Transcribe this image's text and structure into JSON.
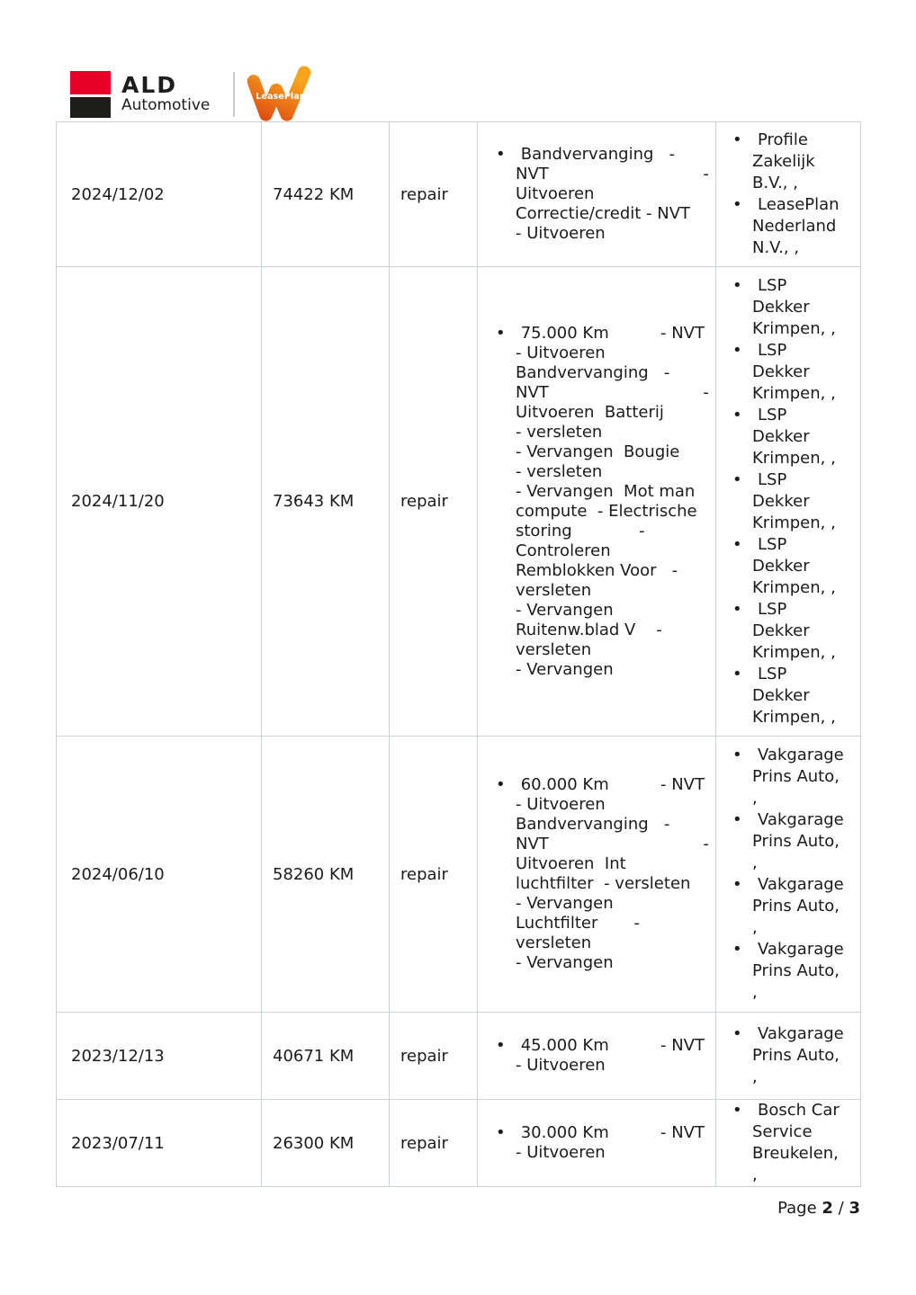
{
  "theme": {
    "ald_red": "#e60028",
    "logo_black": "#1d1d1b",
    "lp_orange_light": "#f7a41d",
    "lp_orange_dark": "#e04d12",
    "table_border": "#c9d2d9",
    "text_color": "#1b1b1b"
  },
  "header": {
    "ald_brand": "ALD",
    "ald_sub": "Automotive",
    "leaseplan_label": "LeasePlan"
  },
  "table": {
    "rows": [
      {
        "date": "2024/12/02",
        "mileage": "74422 KM",
        "type": "repair",
        "service_lines": [
          " Bandvervanging   -",
          "NVT                              -",
          "Uitvoeren",
          "Correctie/credit - NVT",
          "- Uitvoeren"
        ],
        "suppliers": [
          "Profile Zakelijk B.V., ,",
          "LeasePlan Nederland N.V., ,"
        ]
      },
      {
        "date": "2024/11/20",
        "mileage": "73643 KM",
        "type": "repair",
        "service_lines": [
          " 75.000 Km          - NVT",
          "- Uitvoeren",
          "Bandvervanging   -",
          "NVT                              -",
          "Uitvoeren  Batterij",
          "- versleten",
          "- Vervangen  Bougie",
          "- versleten",
          "- Vervangen  Mot man",
          "compute  - Electrische",
          "storing             -",
          "Controleren",
          "Remblokken Voor   -",
          "versleten",
          "- Vervangen",
          "Ruitenw.blad V    -",
          "versleten",
          "- Vervangen"
        ],
        "suppliers": [
          "LSP Dekker Krimpen, ,",
          "LSP Dekker Krimpen, ,",
          "LSP Dekker Krimpen, ,",
          "LSP Dekker Krimpen, ,",
          "LSP Dekker Krimpen, ,",
          "LSP Dekker Krimpen, ,",
          "LSP Dekker Krimpen, ,"
        ]
      },
      {
        "date": "2024/06/10",
        "mileage": "58260 KM",
        "type": "repair",
        "service_lines": [
          " 60.000 Km          - NVT",
          "- Uitvoeren",
          "Bandvervanging   -",
          "NVT                              -",
          "Uitvoeren  Int",
          "luchtfilter  - versleten",
          "- Vervangen",
          "Luchtfilter       -",
          "versleten",
          "- Vervangen"
        ],
        "suppliers": [
          "Vakgarage Prins Auto, ,",
          "Vakgarage Prins Auto, ,",
          "Vakgarage Prins Auto, ,",
          "Vakgarage Prins Auto, ,"
        ]
      },
      {
        "date": "2023/12/13",
        "mileage": "40671 KM",
        "type": "repair",
        "service_lines": [
          " 45.000 Km          - NVT",
          "- Uitvoeren"
        ],
        "suppliers": [
          "Vakgarage Prins Auto, ,"
        ]
      },
      {
        "date": "2023/07/11",
        "mileage": "26300 KM",
        "type": "repair",
        "service_lines": [
          " 30.000 Km          - NVT",
          "- Uitvoeren"
        ],
        "suppliers": [
          "Bosch Car Service Breukelen, ,"
        ]
      }
    ]
  },
  "footer": {
    "page_label": "Page",
    "current_page": "2",
    "separator": "/",
    "total_pages": "3"
  }
}
